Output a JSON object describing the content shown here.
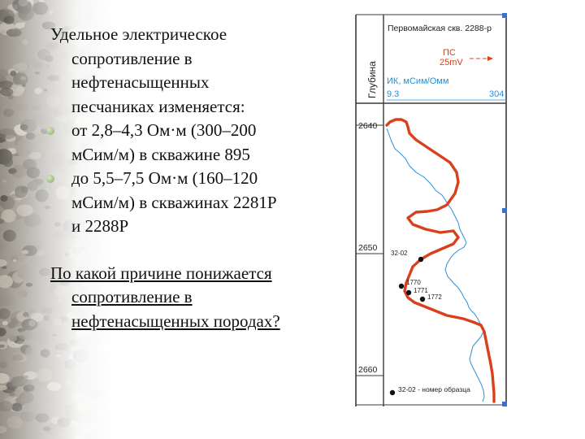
{
  "slide": {
    "intro_lines": [
      "Удельное электрическое",
      "сопротивление в",
      "нефтенасыщенных",
      "песчаниках изменяется:"
    ],
    "bullets": [
      {
        "lines": [
          "от 2,8–4,3 Ом·м (300–200",
          "мСим/м) в скважине 895"
        ]
      },
      {
        "lines": [
          "до 5,5–7,5 Ом·м (160–120",
          "мСим/м) в скважинах 2281Р",
          "и 2288Р"
        ]
      }
    ],
    "question_lines": [
      "По какой причине понижается",
      "сопротивление в",
      "нефтенасыщенных породах?"
    ]
  },
  "log": {
    "well_title": "Первомайская скв. 2288-р",
    "depth_label": "Глубина",
    "ps_label": "ПС",
    "ps_scale": "25mV",
    "ik_label": "ИК, мСим/Омм",
    "ik_min": "9.3",
    "ik_max": "304",
    "depths": [
      "2640",
      "2650",
      "2660"
    ],
    "samples": [
      "32-02",
      "1770",
      "1771",
      "1772"
    ],
    "legend": "32-02 - номер образца",
    "colors": {
      "ik_curve": "#d9401c",
      "ps_curve": "#2a8ed6",
      "frame": "#3a3a3a"
    }
  }
}
